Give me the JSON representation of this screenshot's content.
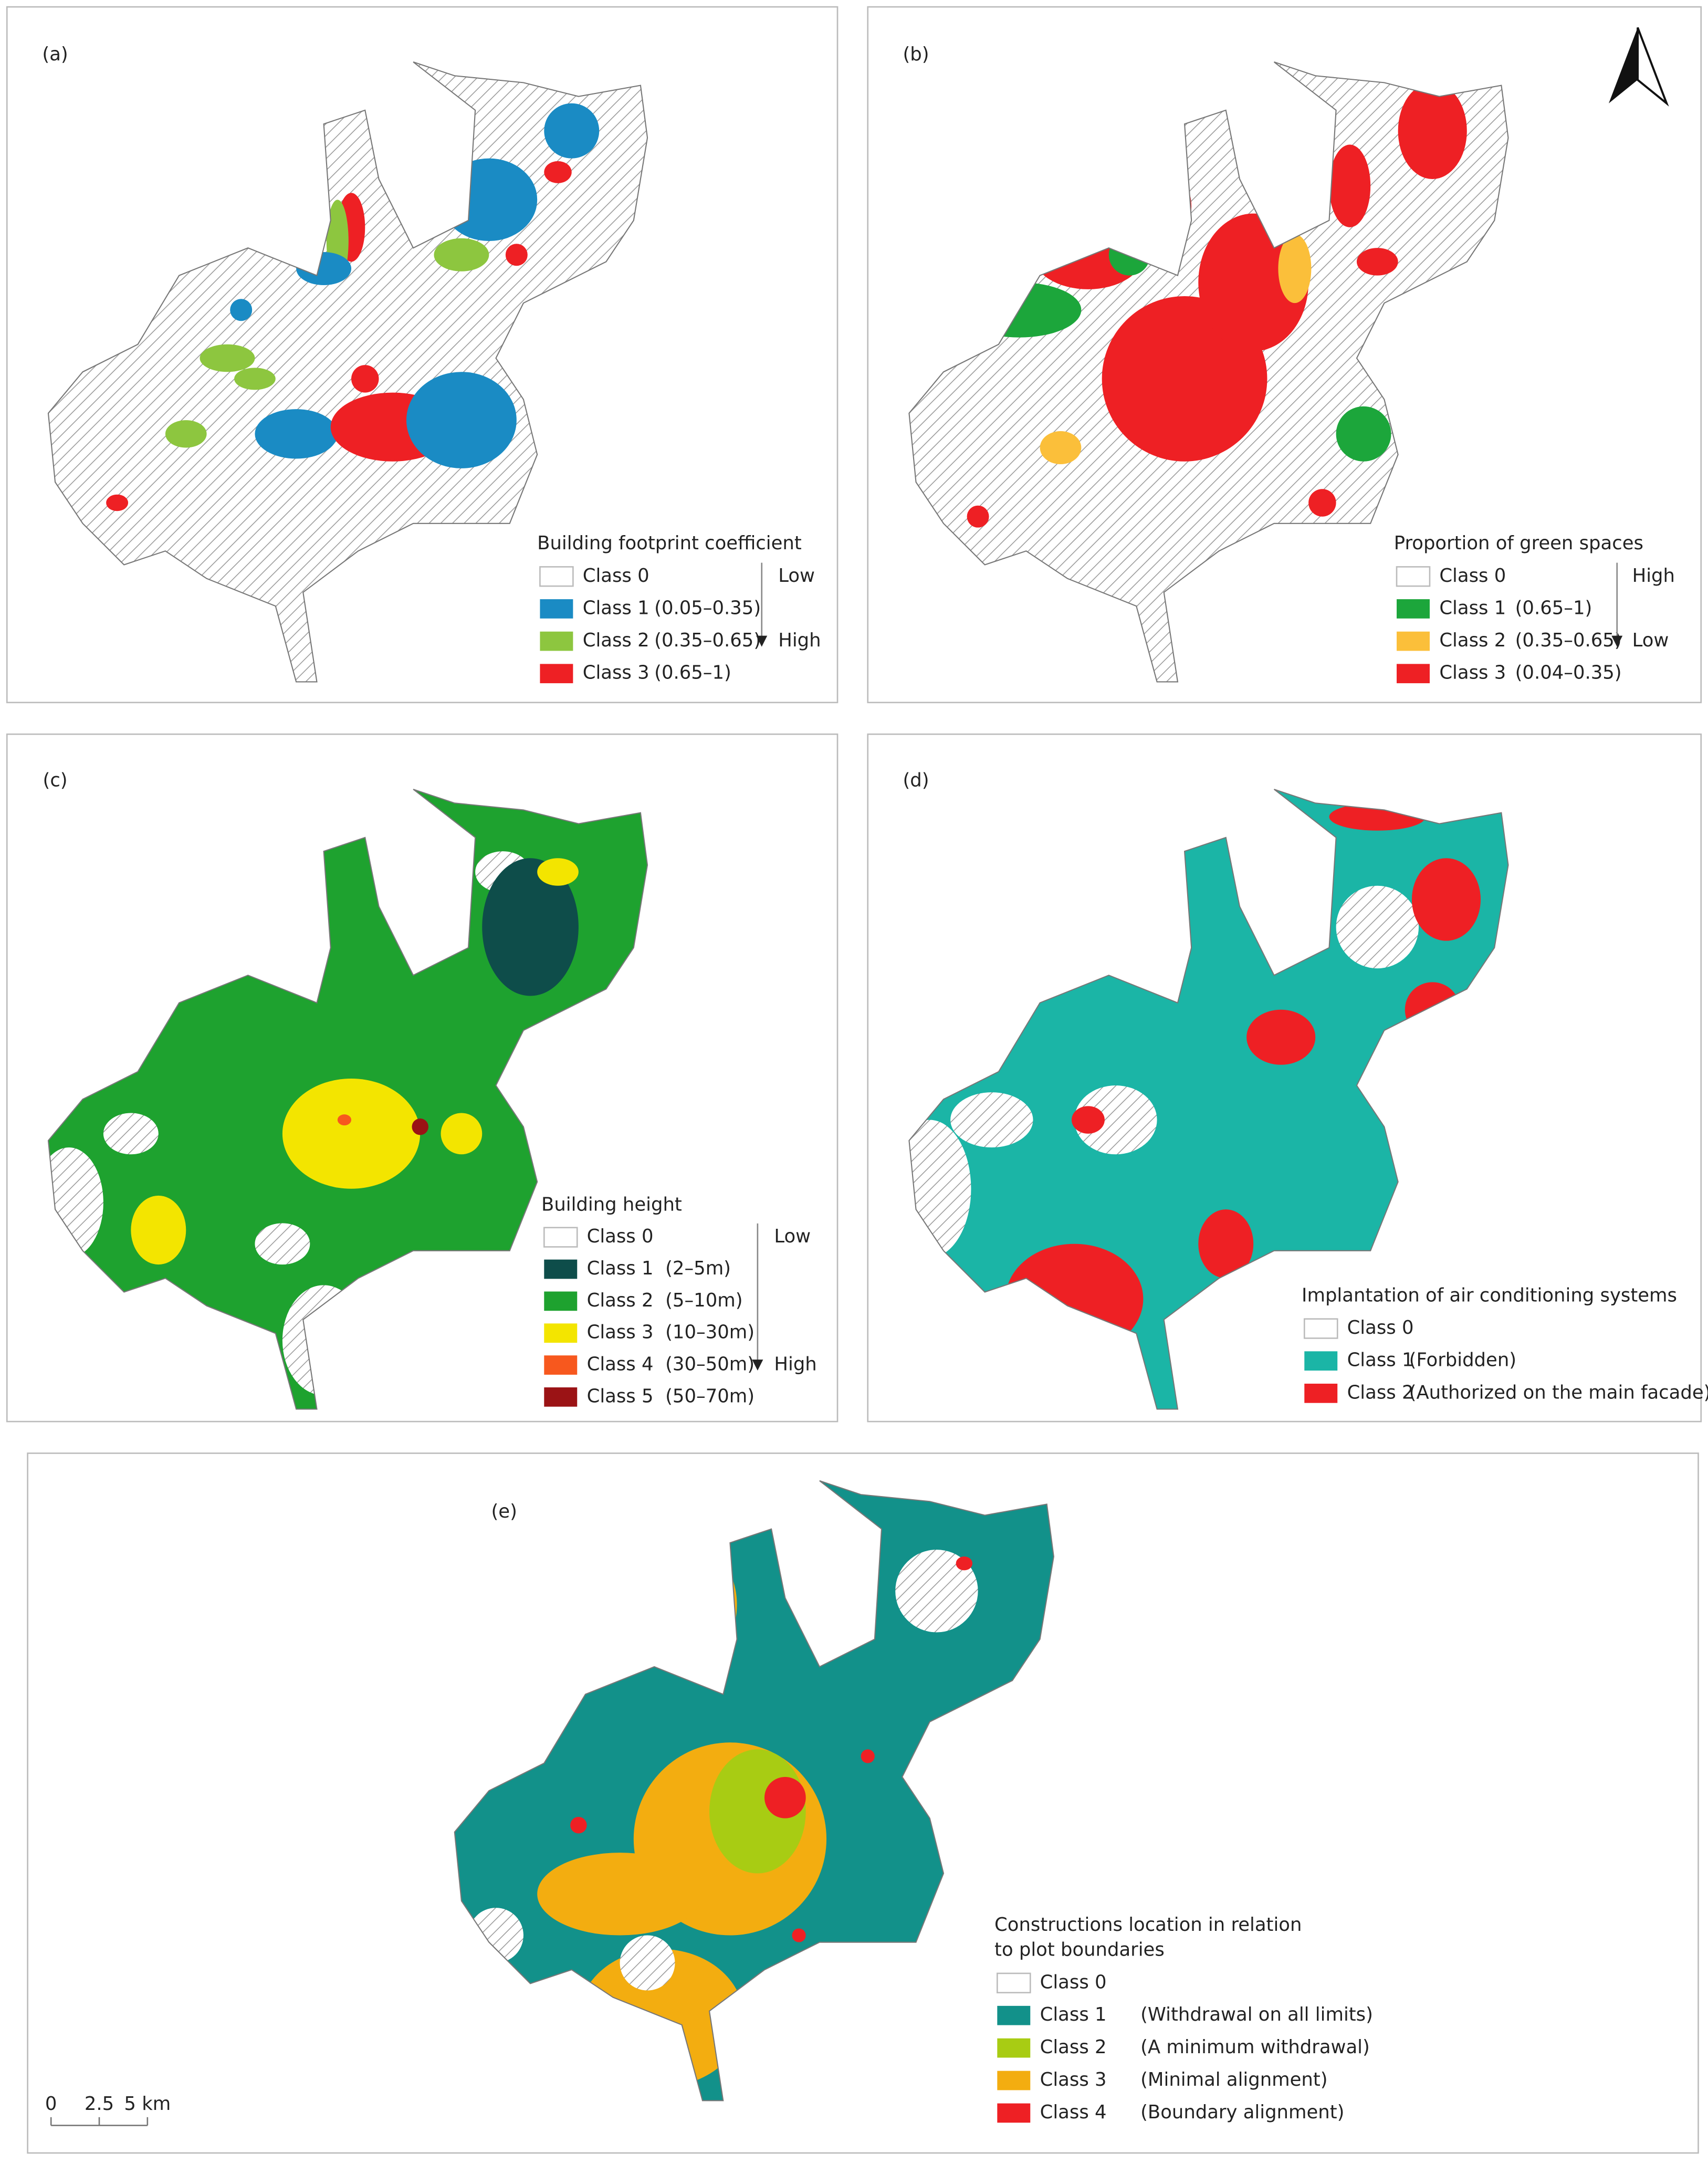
{
  "panels": [
    {
      "label": "(a)",
      "legend": {
        "title": "Building footprint coefficient",
        "low_high": [
          "Low",
          "High"
        ],
        "classes": [
          {
            "name": "Class 0",
            "color": "#ffffff"
          },
          {
            "name": "Class 1",
            "range": "(0.05–0.35)",
            "color": "#1a8bc4"
          },
          {
            "name": "Class 2",
            "range": "(0.35–0.65)",
            "color": "#8dc63f"
          },
          {
            "name": "Class 3",
            "range": "(0.65–1)",
            "color": "#ee2024"
          }
        ]
      }
    },
    {
      "label": "(b)",
      "legend": {
        "title": "Proportion of green spaces",
        "low_high": [
          "High",
          "Low"
        ],
        "classes": [
          {
            "name": "Class 0",
            "color": "#ffffff"
          },
          {
            "name": "Class 1",
            "range": "(0.65–1)",
            "color": "#1ca63b"
          },
          {
            "name": "Class 2",
            "range": "(0.35–0.65)",
            "color": "#fbbf3a"
          },
          {
            "name": "Class 3",
            "range": "(0.04–0.35)",
            "color": "#ee2024"
          }
        ]
      }
    },
    {
      "label": "(c)",
      "legend": {
        "title": "Building height",
        "low_high": [
          "Low",
          "High"
        ],
        "classes": [
          {
            "name": "Class 0",
            "color": "#ffffff"
          },
          {
            "name": "Class 1",
            "range": "(2–5m)",
            "color": "#0e4d4a"
          },
          {
            "name": "Class 2",
            "range": "(5–10m)",
            "color": "#1ea22f"
          },
          {
            "name": "Class 3",
            "range": "(10–30m)",
            "color": "#f3e500"
          },
          {
            "name": "Class 4",
            "range": "(30–50m)",
            "color": "#f7581e"
          },
          {
            "name": "Class 5",
            "range": "(50–70m)",
            "color": "#9b1315"
          }
        ]
      }
    },
    {
      "label": "(d)",
      "legend": {
        "title": "Implantation of air conditioning systems",
        "classes": [
          {
            "name": "Class 0",
            "color": "#ffffff"
          },
          {
            "name": "Class 1",
            "range": "(Forbidden)",
            "color": "#1bb5a6"
          },
          {
            "name": "Class 2",
            "range": "(Authorized on the main facade)",
            "color": "#ee2024"
          }
        ]
      }
    },
    {
      "label": "(e)",
      "legend": {
        "title": [
          "Constructions location in relation",
          "to plot boundaries"
        ],
        "classes": [
          {
            "name": "Class 0",
            "color": "#ffffff"
          },
          {
            "name": "Class 1",
            "range": "(Withdrawal on all limits)",
            "color": "#12918a"
          },
          {
            "name": "Class 2",
            "range": "(A minimum withdrawal)",
            "color": "#a8cc13"
          },
          {
            "name": "Class 3",
            "range": "(Minimal alignment)",
            "color": "#f3ad10"
          },
          {
            "name": "Class 4",
            "range": "(Boundary alignment)",
            "color": "#ee2024"
          }
        ]
      }
    }
  ],
  "scale_bar": {
    "labels": [
      "0",
      "2.5",
      "5 km"
    ]
  }
}
